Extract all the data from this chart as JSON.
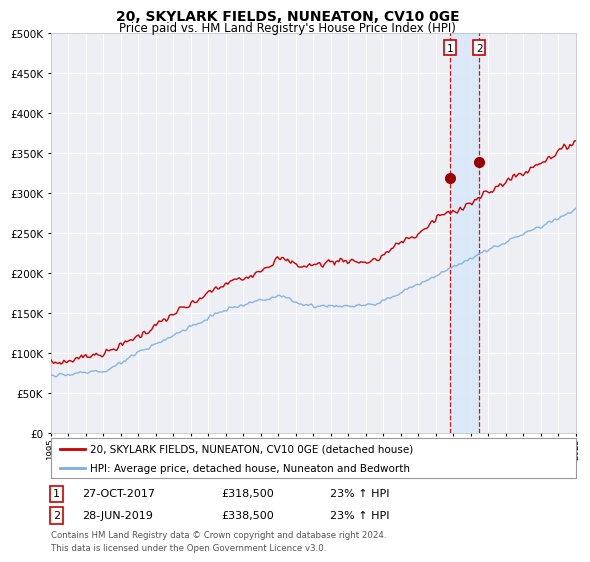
{
  "title": "20, SKYLARK FIELDS, NUNEATON, CV10 0GE",
  "subtitle": "Price paid vs. HM Land Registry's House Price Index (HPI)",
  "legend_line1": "20, SKYLARK FIELDS, NUNEATON, CV10 0GE (detached house)",
  "legend_line2": "HPI: Average price, detached house, Nuneaton and Bedworth",
  "transaction1_date": "27-OCT-2017",
  "transaction1_price": 318500,
  "transaction1_hpi": "23% ↑ HPI",
  "transaction1_label": "1",
  "transaction2_date": "28-JUN-2019",
  "transaction2_price": 338500,
  "transaction2_hpi": "23% ↑ HPI",
  "transaction2_label": "2",
  "footer": "Contains HM Land Registry data © Crown copyright and database right 2024.\nThis data is licensed under the Open Government Licence v3.0.",
  "hpi_color": "#7ab0de",
  "price_color": "#cc0000",
  "background_color": "#ffffff",
  "plot_bg_color": "#eeeef5",
  "grid_color": "#ffffff",
  "vline_color": "#cc0000",
  "vband_color": "#d8e8f8",
  "marker_color": "#990000",
  "ylim": [
    0,
    500000
  ],
  "yticks": [
    0,
    50000,
    100000,
    150000,
    200000,
    250000,
    300000,
    350000,
    400000,
    450000,
    500000
  ],
  "start_year": 1995,
  "end_year": 2025,
  "transaction1_x": 2017.82,
  "transaction2_x": 2019.49
}
